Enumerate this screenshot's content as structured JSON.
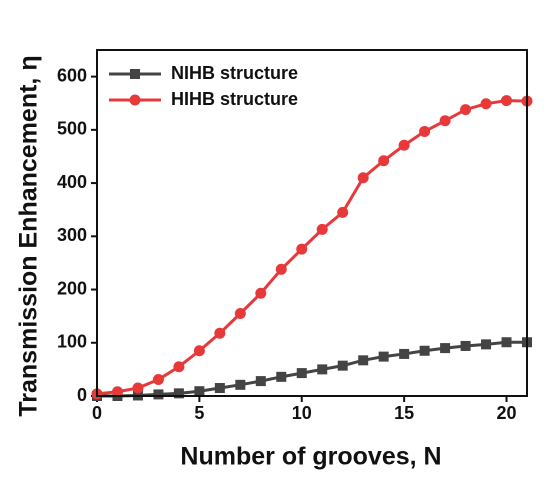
{
  "chart_data": {
    "type": "line",
    "x_label": "Number of grooves, N",
    "y_label": "Transmission Enhancement, η",
    "x": [
      0,
      1,
      2,
      3,
      4,
      5,
      6,
      7,
      8,
      9,
      10,
      11,
      12,
      13,
      14,
      15,
      16,
      17,
      18,
      19,
      20,
      21
    ],
    "series": [
      {
        "name": "NIHB structure",
        "color": "#444444",
        "marker": "square",
        "values": [
          0,
          0,
          1,
          3,
          5,
          9,
          15,
          21,
          28,
          36,
          43,
          50,
          57,
          67,
          74,
          79,
          85,
          90,
          94,
          97,
          101,
          101
        ]
      },
      {
        "name": "HIHB structure",
        "color": "#e8393a",
        "marker": "circle",
        "values": [
          4,
          8,
          15,
          31,
          55,
          85,
          118,
          155,
          193,
          238,
          276,
          313,
          345,
          410,
          442,
          471,
          497,
          517,
          538,
          549,
          555,
          554
        ]
      }
    ],
    "xlim": [
      0,
      21
    ],
    "xticks": [
      0,
      5,
      10,
      15,
      20
    ],
    "ylim": [
      0,
      650
    ],
    "yticks": [
      0,
      100,
      200,
      300,
      400,
      500,
      600
    ],
    "legend": "upper left"
  }
}
